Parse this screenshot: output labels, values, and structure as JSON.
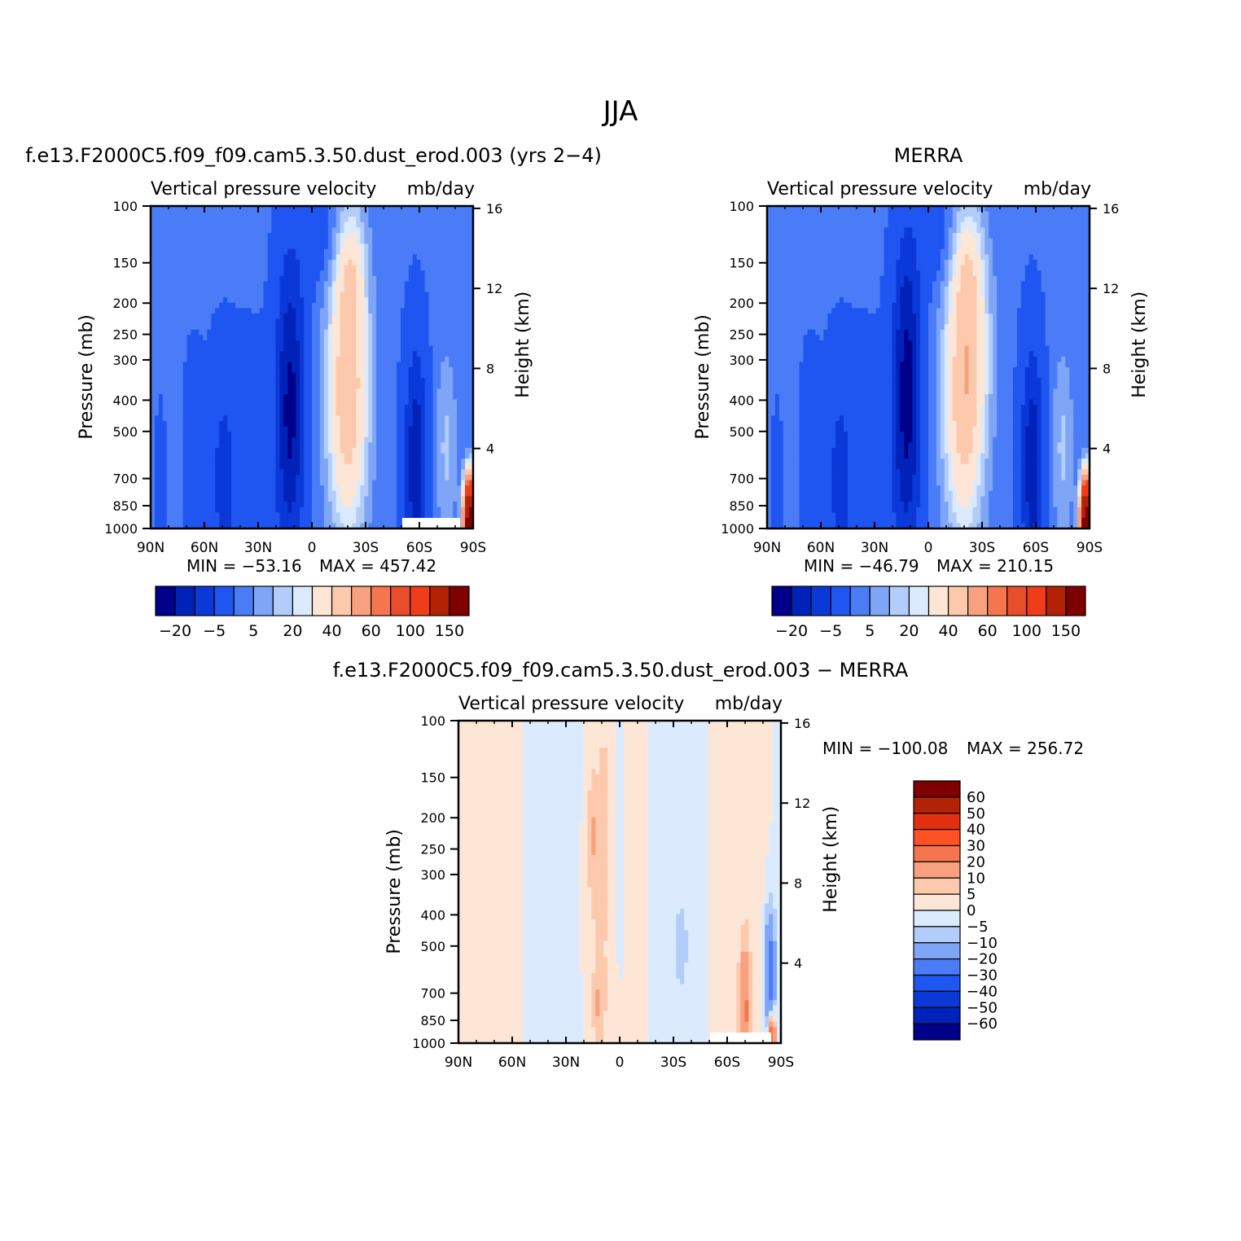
{
  "figure": {
    "title": "JJA"
  },
  "colorbars": {
    "top_labels": [
      "−20",
      "−5",
      "5",
      "20",
      "40",
      "60",
      "100",
      "150"
    ],
    "diff_labels": [
      "60",
      "50",
      "40",
      "30",
      "20",
      "10",
      "5",
      "0",
      "−5",
      "−10",
      "−20",
      "−30",
      "−40",
      "−50",
      "−60"
    ],
    "top_colors": [
      "#00008b",
      "#0022b8",
      "#0a39d8",
      "#1f55f0",
      "#4a7cf7",
      "#7fa5f7",
      "#b2cdf9",
      "#dceafd",
      "#fde6d6",
      "#fcc9ad",
      "#f9a07e",
      "#f5764e",
      "#e94e2a",
      "#ef3d1a",
      "#b42206",
      "#7f0000"
    ],
    "diff_colors": [
      "#7f0000",
      "#b42206",
      "#e03010",
      "#ff5224",
      "#f5764e",
      "#f9a07e",
      "#fcc9ad",
      "#fde6d6",
      "#dceafd",
      "#b2cdf9",
      "#7fa5f7",
      "#4a7cf7",
      "#1f55f0",
      "#0a39d8",
      "#0022b8",
      "#00008b"
    ]
  },
  "chart_data": [
    {
      "type": "heatmap",
      "panel_title": "f.e13.F2000C5.f09_f09.cam5.3.50.dust_erod.003 (yrs 2−4)",
      "variable": "Vertical pressure velocity",
      "units": "mb/day",
      "ylabel": "Pressure (mb)",
      "ylabel_right": "Height (km)",
      "x_ticks": [
        "90N",
        "60N",
        "30N",
        "0",
        "30S",
        "60S",
        "90S"
      ],
      "y_ticks": [
        "100",
        "150",
        "200",
        "250",
        "300",
        "400",
        "500",
        "700",
        "850",
        "1000"
      ],
      "y2_ticks": [
        "16",
        "12",
        "8",
        "4"
      ],
      "x_range": [
        90,
        -90
      ],
      "y_range": [
        1000,
        100
      ],
      "y_scale": "log",
      "min_label": "MIN = −53.16",
      "max_label": "MAX = 457.42",
      "min": -53.16,
      "max": 457.42,
      "features": [
        {
          "lat": 12,
          "p_top": 170,
          "value": -40,
          "kind": "ascent"
        },
        {
          "lat": -20,
          "p_top": 190,
          "value": 10,
          "kind": "descent"
        }
      ]
    },
    {
      "type": "heatmap",
      "panel_title": "MERRA",
      "variable": "Vertical pressure velocity",
      "units": "mb/day",
      "ylabel": "Pressure (mb)",
      "ylabel_right": "Height (km)",
      "x_ticks": [
        "90N",
        "60N",
        "30N",
        "0",
        "30S",
        "60S",
        "90S"
      ],
      "y_ticks": [
        "100",
        "150",
        "200",
        "250",
        "300",
        "400",
        "500",
        "700",
        "850",
        "1000"
      ],
      "y2_ticks": [
        "16",
        "12",
        "8",
        "4"
      ],
      "x_range": [
        90,
        -90
      ],
      "y_range": [
        1000,
        100
      ],
      "y_scale": "log",
      "min_label": "MIN = −46.79",
      "max_label": "MAX = 210.15",
      "min": -46.79,
      "max": 210.15
    },
    {
      "type": "heatmap",
      "panel_title": "f.e13.F2000C5.f09_f09.cam5.3.50.dust_erod.003 − MERRA",
      "variable": "Vertical pressure velocity",
      "units": "mb/day",
      "ylabel": "Pressure (mb)",
      "ylabel_right": "Height (km)",
      "x_ticks": [
        "90N",
        "60N",
        "30N",
        "0",
        "30S",
        "60S",
        "90S"
      ],
      "y_ticks": [
        "100",
        "150",
        "200",
        "250",
        "300",
        "400",
        "500",
        "700",
        "850",
        "1000"
      ],
      "y2_ticks": [
        "16",
        "12",
        "8",
        "4"
      ],
      "x_range": [
        90,
        -90
      ],
      "y_range": [
        1000,
        100
      ],
      "y_scale": "log",
      "min_label": "MIN = −100.08",
      "max_label": "MAX = 256.72",
      "min": -100.08,
      "max": 256.72
    }
  ]
}
